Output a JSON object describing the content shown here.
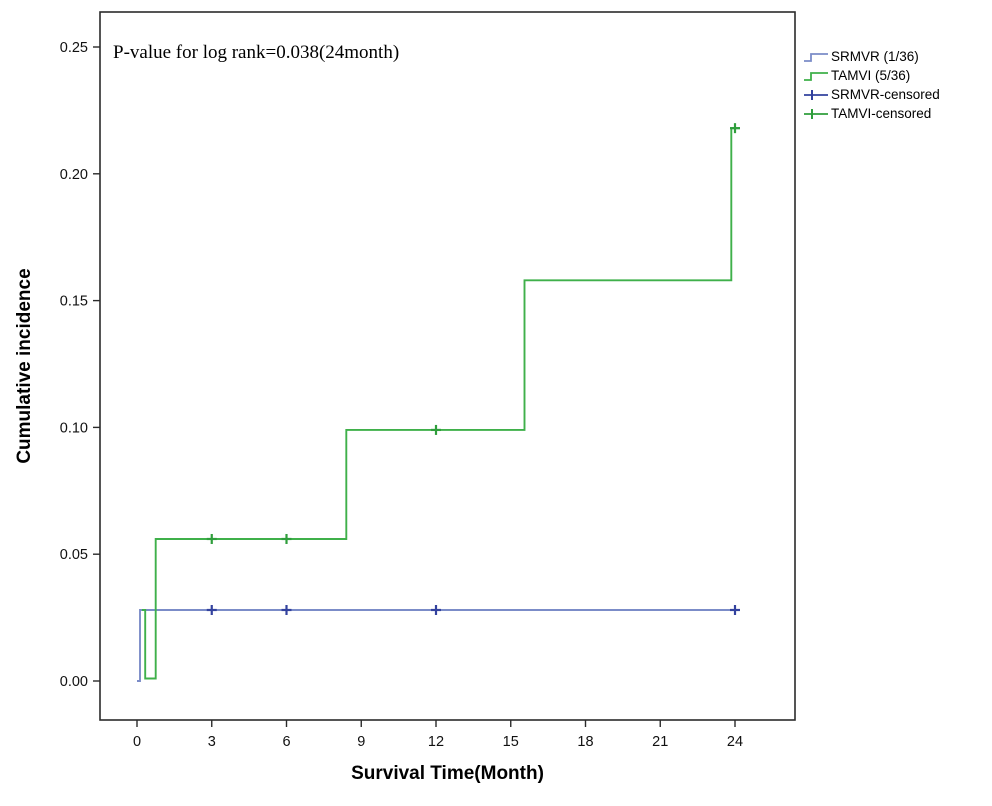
{
  "chart_data": {
    "type": "line",
    "subtype": "step-cumulative-incidence",
    "title": "",
    "annotation": "P-value for log rank=0.038(24month)",
    "xlabel": "Survival Time(Month)",
    "ylabel": "Cumulative incidence",
    "x_axis": {
      "range": [
        0,
        24
      ],
      "ticks": [
        0,
        3,
        6,
        9,
        12,
        15,
        18,
        21,
        24
      ]
    },
    "y_axis": {
      "range": [
        0,
        0.25
      ],
      "tick_values": [
        0,
        0.05,
        0.1,
        0.15,
        0.2,
        0.25
      ],
      "ticks": [
        "0.00",
        "0.05",
        "0.10",
        "0.15",
        "0.20",
        "0.25"
      ]
    },
    "grid": false,
    "legend_position": "right-top-outside",
    "series": [
      {
        "name": "SRMVR (1/36)",
        "color": "#7b8cc8",
        "marker_color": "#33429e",
        "steps": [
          [
            0,
            0.0
          ],
          [
            0.12,
            0.0
          ],
          [
            0.12,
            0.028
          ],
          [
            24.15,
            0.028
          ]
        ],
        "censored": [
          [
            3,
            0.028
          ],
          [
            6,
            0.028
          ],
          [
            12,
            0.028
          ],
          [
            24,
            0.028
          ]
        ]
      },
      {
        "name": "TAMVI (5/36)",
        "color": "#3fb04a",
        "marker_color": "#2f9e3c",
        "steps": [
          [
            0.2,
            0.028
          ],
          [
            0.33,
            0.028
          ],
          [
            0.33,
            0.001
          ],
          [
            0.75,
            0.001
          ],
          [
            0.75,
            0.056
          ],
          [
            8.4,
            0.056
          ],
          [
            8.4,
            0.099
          ],
          [
            15.55,
            0.099
          ],
          [
            15.55,
            0.158
          ],
          [
            23.85,
            0.158
          ],
          [
            23.85,
            0.218
          ],
          [
            24.2,
            0.218
          ]
        ],
        "censored": [
          [
            3,
            0.056
          ],
          [
            6,
            0.056
          ],
          [
            12,
            0.099
          ],
          [
            24,
            0.218
          ]
        ]
      }
    ]
  },
  "legend": {
    "items": [
      {
        "label": "SRMVR (1/36)",
        "symbol": "step-line",
        "color": "#7b8cc8"
      },
      {
        "label": "TAMVI (5/36)",
        "symbol": "step-line",
        "color": "#3fb04a"
      },
      {
        "label": "SRMVR-censored",
        "symbol": "line-plus",
        "color": "#33429e"
      },
      {
        "label": "TAMVI-censored",
        "symbol": "line-plus",
        "color": "#2f9e3c"
      }
    ]
  }
}
